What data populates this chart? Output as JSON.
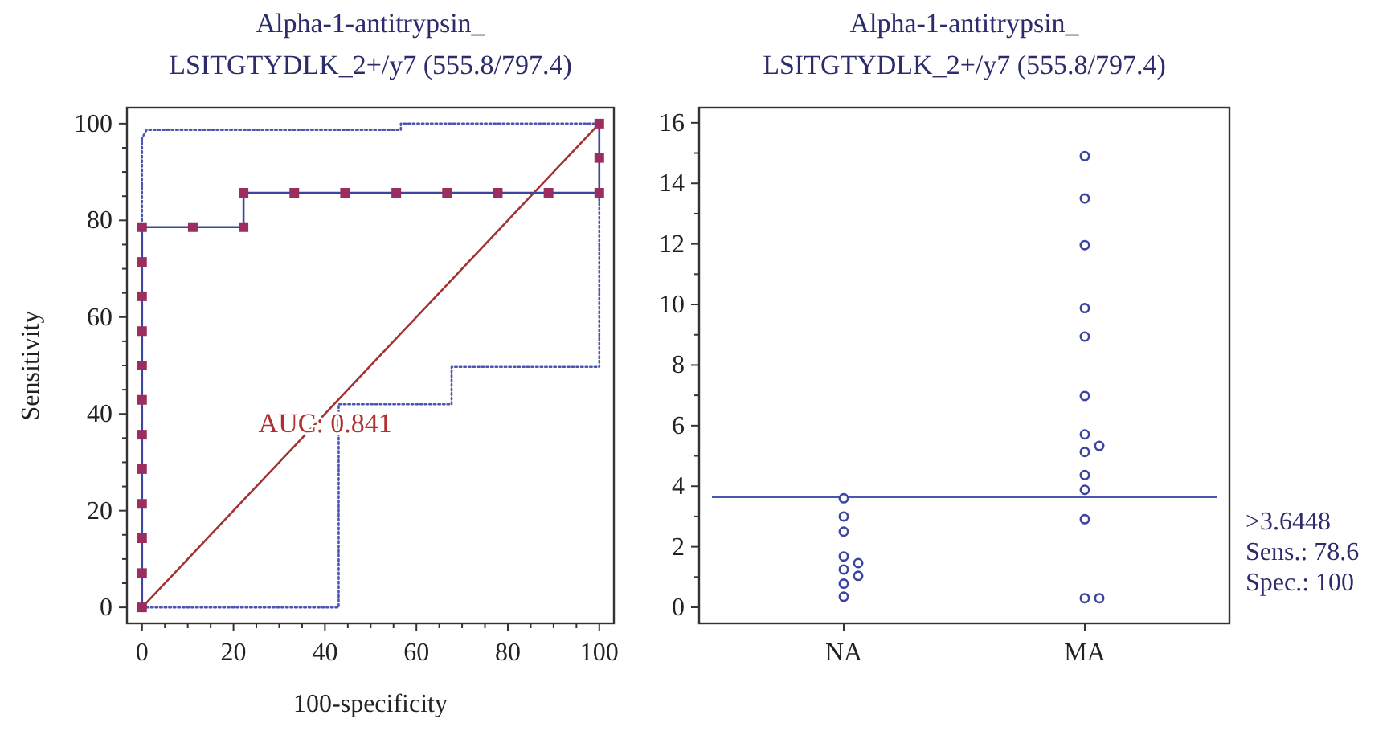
{
  "chart_data": [
    {
      "type": "line",
      "title": "Alpha-1-antitrypsin_LSITGTYDLK_2+/y7 (555.8/797.4)",
      "xlabel": "100-specificity",
      "ylabel": "Sensitivity",
      "xlim": [
        -3.3,
        103.2
      ],
      "ylim": [
        -3.3,
        103.3
      ],
      "xticks": [
        0,
        {
          "value": 5,
          "label": null
        },
        20,
        {
          "value": 10,
          "label": null
        },
        {
          "value": 15,
          "label": null
        },
        {
          "value": 25,
          "label": null
        },
        {
          "value": 30,
          "label": null
        },
        {
          "value": 35,
          "label": null
        },
        40,
        {
          "value": 45,
          "label": null
        },
        {
          "value": 50,
          "label": null
        },
        {
          "value": 55,
          "label": null
        },
        60,
        {
          "value": 65,
          "label": null
        },
        {
          "value": 70,
          "label": null
        },
        {
          "value": 75,
          "label": null
        },
        80,
        {
          "value": 85,
          "label": null
        },
        {
          "value": 90,
          "label": null
        },
        {
          "value": 95,
          "label": null
        },
        100
      ],
      "yticks": [
        0,
        {
          "value": 5,
          "label": null
        },
        {
          "value": 10,
          "label": null
        },
        {
          "value": 15,
          "label": null
        },
        20,
        {
          "value": 25,
          "label": null
        },
        {
          "value": 30,
          "label": null
        },
        {
          "value": 35,
          "label": null
        },
        40,
        {
          "value": 45,
          "label": null
        },
        {
          "value": 50,
          "label": null
        },
        {
          "value": 55,
          "label": null
        },
        60,
        {
          "value": 65,
          "label": null
        },
        {
          "value": 70,
          "label": null
        },
        {
          "value": 75,
          "label": null
        },
        80,
        {
          "value": 85,
          "label": null
        },
        {
          "value": 90,
          "label": null
        },
        {
          "value": 95,
          "label": null
        },
        100
      ],
      "series": [
        {
          "color": "#4a55b0",
          "line_style": "dotted",
          "marker": "none",
          "x": [
            0,
            0,
            1,
            56.6,
            56.6,
            100
          ],
          "values": [
            79,
            97,
            98.7,
            98.7,
            100,
            100
          ]
        },
        {
          "color": "#4a55b0",
          "line_style": "dotted",
          "marker": "none",
          "x": [
            0,
            43,
            43,
            67.7,
            67.7,
            100,
            100
          ],
          "values": [
            0,
            0,
            42,
            42,
            49.7,
            49.7,
            85.7
          ]
        },
        {
          "color": "#a33232",
          "line_style": "solid",
          "marker": "none",
          "x": [
            0,
            100
          ],
          "values": [
            0,
            100
          ]
        },
        {
          "color": "#3c45a0",
          "line_style": "solid",
          "marker": "none",
          "x": [
            0,
            0,
            0,
            0,
            0,
            0,
            0,
            0,
            0,
            0,
            0,
            0,
            11.1,
            22.2,
            22.2,
            33.3,
            44.4,
            55.6,
            66.7,
            77.8,
            88.9,
            100,
            100,
            100
          ],
          "values": [
            0,
            7.1,
            14.3,
            21.4,
            28.6,
            35.7,
            42.9,
            50,
            57.1,
            64.3,
            71.4,
            78.6,
            78.6,
            78.6,
            85.7,
            85.7,
            85.7,
            85.7,
            85.7,
            85.7,
            85.7,
            85.7,
            92.9,
            100
          ]
        },
        {
          "type": "scatter",
          "color": "#9b2d5f",
          "marker": "square",
          "x": [
            0,
            0,
            0,
            0,
            0,
            0,
            0,
            0,
            0,
            0,
            0,
            0,
            11.1,
            22.2,
            22.2,
            33.3,
            44.4,
            55.6,
            66.7,
            77.8,
            88.9,
            100,
            100,
            100
          ],
          "values": [
            0,
            7.1,
            14.3,
            21.4,
            28.6,
            35.7,
            42.9,
            50,
            57.1,
            64.3,
            71.4,
            78.6,
            78.6,
            78.6,
            85.7,
            85.7,
            85.7,
            85.7,
            85.7,
            85.7,
            85.7,
            85.7,
            92.9,
            100
          ]
        }
      ],
      "annotations": [
        "AUC: 0.841"
      ]
    },
    {
      "type": "scatter",
      "title": "Alpha-1-antitrypsin_LSITGTYDLK_2+/y7 (555.8/797.4)",
      "ylim": [
        -0.53,
        16.5
      ],
      "categories": [
        "NA",
        "MA"
      ],
      "yticks": [
        0,
        {
          "value": 1,
          "label": null
        },
        2,
        {
          "value": 3,
          "label": null
        },
        4,
        {
          "value": 5,
          "label": null
        },
        6,
        {
          "value": 7,
          "label": null
        },
        8,
        {
          "value": 9,
          "label": null
        },
        10,
        {
          "value": 11,
          "label": null
        },
        12,
        {
          "value": 13,
          "label": null
        },
        14,
        {
          "value": 15,
          "label": null
        },
        16
      ],
      "marker": "circle",
      "series": [
        {
          "color": "#3c45a0",
          "x": [
            "NA",
            "NA",
            "NA",
            "NA",
            "NA",
            "NA",
            "NA",
            "NA",
            "NA",
            "MA",
            "MA",
            "MA",
            "MA",
            "MA",
            "MA",
            "MA",
            "MA",
            "MA",
            "MA",
            "MA",
            "MA",
            "MA",
            "MA"
          ],
          "values": [
            3.6,
            3,
            2.5,
            1.68,
            1.46,
            1.25,
            1.04,
            0.78,
            0.35,
            14.9,
            13.5,
            11.96,
            9.88,
            8.94,
            6.98,
            5.71,
            5.13,
            5.33,
            4.37,
            3.88,
            2.91,
            0.3,
            0.3
          ]
        }
      ],
      "ref_lines": [
        {
          "axis": "y",
          "value": 3.6448,
          "label": ">3.6448",
          "color": "#4a55b0"
        }
      ],
      "annotations": [
        "Sens.: 78.6",
        "Spec.: 100"
      ]
    }
  ]
}
